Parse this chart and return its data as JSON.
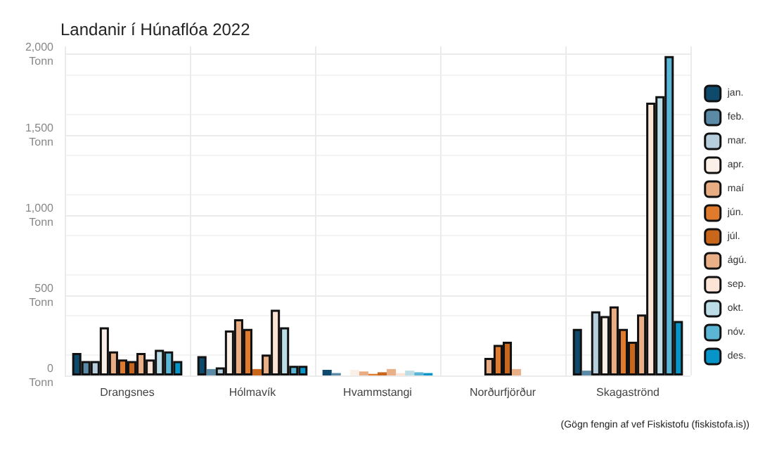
{
  "chart_data": {
    "type": "bar",
    "title": "Landanir í Húnaflóa 2022",
    "categories": [
      "Drangsnes",
      "Hólmavík",
      "Hvammstangi",
      "Norðurfjörður",
      "Skagaströnd"
    ],
    "series": [
      {
        "name": "jan.",
        "color": "#0d4a6b",
        "values": [
          140,
          120,
          35,
          0,
          290
        ]
      },
      {
        "name": "feb.",
        "color": "#5a8aa6",
        "values": [
          90,
          40,
          15,
          0,
          30
        ]
      },
      {
        "name": "mar.",
        "color": "#b7cfdc",
        "values": [
          90,
          50,
          null,
          0,
          400
        ]
      },
      {
        "name": "apr.",
        "color": "#fbf0e8",
        "values": [
          300,
          280,
          35,
          null,
          370
        ]
      },
      {
        "name": "maí",
        "color": "#e8ad83",
        "values": [
          150,
          350,
          25,
          110,
          430
        ]
      },
      {
        "name": "jún.",
        "color": "#e07b2e",
        "values": [
          100,
          290,
          10,
          190,
          290
        ]
      },
      {
        "name": "júl.",
        "color": "#c8661c",
        "values": [
          90,
          40,
          20,
          210,
          210
        ]
      },
      {
        "name": "ágú.",
        "color": "#e9af86",
        "values": [
          140,
          130,
          40,
          40,
          380
        ]
      },
      {
        "name": "sep.",
        "color": "#fbe3d6",
        "values": [
          100,
          410,
          15,
          0,
          1700
        ]
      },
      {
        "name": "okt.",
        "color": "#bcdde6",
        "values": [
          160,
          300,
          30,
          0,
          1740
        ]
      },
      {
        "name": "nóv.",
        "color": "#5bb6d6",
        "values": [
          150,
          60,
          20,
          0,
          1990
        ]
      },
      {
        "name": "des.",
        "color": "#0795c9",
        "values": [
          90,
          60,
          15,
          0,
          340
        ]
      }
    ],
    "ylim": [
      0,
      2050
    ],
    "yticks": [
      {
        "value": 0,
        "label": "0\nTonn"
      },
      {
        "value": 500,
        "label": "500\nTonn"
      },
      {
        "value": 1000,
        "label": "1,000\nTonn"
      },
      {
        "value": 1500,
        "label": "1,500\nTonn"
      },
      {
        "value": 2000,
        "label": "2,000\nTonn"
      }
    ],
    "grid": true,
    "legend": "right",
    "annotations": [
      "(Gögn fengin af vef Fiskistofu (fiskistofa.is))"
    ]
  }
}
